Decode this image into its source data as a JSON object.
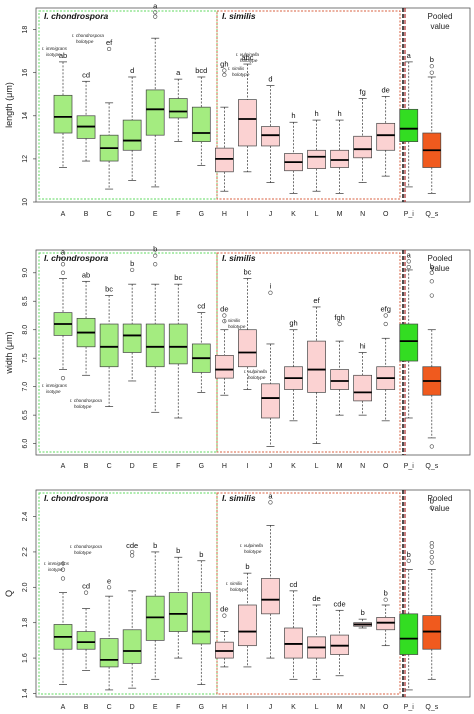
{
  "colors": {
    "chondrospora": "#a4ec80",
    "similis": "#fbd2d2",
    "pooled_i": "#33dd22",
    "pooled_q": "#f05a1e",
    "green_frame": "#5fd85f",
    "red_frame": "#d86040",
    "divider": "#990000"
  },
  "chart_data": [
    {
      "type": "box",
      "ylabel": "length (μm)",
      "ylim": [
        10,
        19
      ],
      "yticks": [
        10,
        12,
        14,
        16,
        18
      ],
      "categories": [
        "A",
        "B",
        "C",
        "D",
        "E",
        "F",
        "G",
        "H",
        "I",
        "J",
        "K",
        "L",
        "M",
        "N",
        "O",
        "P_i",
        "Q_s"
      ],
      "group_labels": {
        "chondrospora": "I. chondrospora",
        "similis": "I. similis"
      },
      "pooled_label": [
        "Pooled",
        "value"
      ],
      "notes": {
        "immigrans": [
          "I. immigrans",
          "isotype"
        ],
        "chondrospora": [
          "I. chondrospora",
          "holotype"
        ],
        "vulpinella": [
          "I. vulpinella",
          "holotype"
        ],
        "similis": [
          "I. similis",
          "holotype"
        ]
      },
      "boxes": [
        {
          "cat": "A",
          "min": 11.6,
          "q1": 13.2,
          "med": 13.95,
          "q3": 14.95,
          "max": 16.5,
          "out": [],
          "letter": "ab",
          "group": "c"
        },
        {
          "cat": "B",
          "min": 11.9,
          "q1": 12.95,
          "q3": 14.0,
          "med": 13.5,
          "max": 15.6,
          "out": [],
          "letter": "cd",
          "group": "c"
        },
        {
          "cat": "C",
          "min": 10.6,
          "q1": 11.9,
          "med": 12.5,
          "q3": 13.1,
          "max": 14.6,
          "out": [
            17.1
          ],
          "letter": "ef",
          "group": "c"
        },
        {
          "cat": "D",
          "min": 11.0,
          "q1": 12.4,
          "med": 12.85,
          "q3": 13.8,
          "max": 15.8,
          "out": [],
          "letter": "d",
          "group": "c"
        },
        {
          "cat": "E",
          "min": 10.7,
          "q1": 13.1,
          "med": 14.3,
          "q3": 15.2,
          "max": 17.6,
          "out": [
            18.6,
            18.8
          ],
          "letter": "a",
          "group": "c"
        },
        {
          "cat": "F",
          "min": 12.8,
          "q1": 13.9,
          "med": 14.2,
          "q3": 14.8,
          "max": 15.7,
          "out": [],
          "letter": "a",
          "group": "c"
        },
        {
          "cat": "G",
          "min": 11.7,
          "q1": 12.8,
          "med": 13.2,
          "q3": 14.4,
          "max": 15.8,
          "out": [],
          "letter": "bcd",
          "group": "c"
        },
        {
          "cat": "H",
          "min": 10.5,
          "q1": 11.4,
          "med": 12.0,
          "q3": 12.5,
          "max": 14.4,
          "out": [
            16.1,
            15.9
          ],
          "letter": "gh",
          "group": "s"
        },
        {
          "cat": "I",
          "min": 11.4,
          "q1": 12.6,
          "med": 13.85,
          "q3": 14.75,
          "max": 16.4,
          "out": [],
          "letter": "abc",
          "group": "s"
        },
        {
          "cat": "J",
          "min": 10.9,
          "q1": 12.6,
          "med": 13.1,
          "q3": 13.5,
          "max": 15.4,
          "out": [],
          "letter": "d",
          "group": "s"
        },
        {
          "cat": "K",
          "min": 10.4,
          "q1": 11.45,
          "med": 11.85,
          "q3": 12.25,
          "max": 13.7,
          "out": [],
          "letter": "h",
          "group": "s"
        },
        {
          "cat": "L",
          "min": 10.5,
          "q1": 11.55,
          "med": 12.1,
          "q3": 12.4,
          "max": 13.8,
          "out": [],
          "letter": "h",
          "group": "s"
        },
        {
          "cat": "M",
          "min": 10.4,
          "q1": 11.6,
          "med": 11.95,
          "q3": 12.4,
          "max": 13.8,
          "out": [],
          "letter": "h",
          "group": "s"
        },
        {
          "cat": "N",
          "min": 10.9,
          "q1": 12.05,
          "med": 12.45,
          "q3": 13.05,
          "max": 14.8,
          "out": [],
          "letter": "fg",
          "group": "s"
        },
        {
          "cat": "O",
          "min": 11.2,
          "q1": 12.4,
          "med": 13.1,
          "q3": 13.65,
          "max": 14.9,
          "out": [],
          "letter": "de",
          "group": "s"
        },
        {
          "cat": "P_i",
          "min": 10.7,
          "q1": 12.8,
          "med": 13.4,
          "q3": 14.3,
          "max": 16.5,
          "out": [],
          "letter": "a",
          "group": "pi"
        },
        {
          "cat": "Q_s",
          "min": 10.4,
          "q1": 11.6,
          "med": 12.4,
          "q3": 13.2,
          "max": 15.8,
          "out": [
            16.0,
            16.3
          ],
          "letter": "b",
          "group": "pq"
        }
      ]
    },
    {
      "type": "box",
      "ylabel": "width (μm)",
      "ylim": [
        5.8,
        9.4
      ],
      "yticks": [
        6.0,
        6.5,
        7.0,
        7.5,
        8.0,
        8.5,
        9.0
      ],
      "categories": [
        "A",
        "B",
        "C",
        "D",
        "E",
        "F",
        "G",
        "H",
        "I",
        "J",
        "K",
        "L",
        "M",
        "N",
        "O",
        "P_i",
        "Q_s"
      ],
      "group_labels": {
        "chondrospora": "I. chondrospora",
        "similis": "I. similis"
      },
      "pooled_label": [
        "Pooled",
        "value"
      ],
      "notes": {
        "immigrans": [
          "I. immigrans",
          "isotype"
        ],
        "chondrospora": [
          "I. chondrospora",
          "holotype"
        ],
        "vulpinella": [
          "I. vulpinella",
          "holotype"
        ],
        "similis": [
          "I. similis",
          "holotype"
        ]
      },
      "boxes": [
        {
          "cat": "A",
          "min": 7.3,
          "q1": 7.9,
          "med": 8.1,
          "q3": 8.3,
          "max": 8.9,
          "out": [
            9.0,
            9.15,
            9.25,
            7.15
          ],
          "letter": "a",
          "group": "c"
        },
        {
          "cat": "B",
          "min": 7.2,
          "q1": 7.7,
          "med": 7.95,
          "q3": 8.2,
          "max": 8.85,
          "out": [],
          "letter": "ab",
          "group": "c"
        },
        {
          "cat": "C",
          "min": 6.65,
          "q1": 7.35,
          "med": 7.7,
          "q3": 8.1,
          "max": 8.6,
          "out": [],
          "letter": "bc",
          "group": "c"
        },
        {
          "cat": "D",
          "min": 7.1,
          "q1": 7.6,
          "med": 7.9,
          "q3": 8.1,
          "max": 8.8,
          "out": [
            9.05
          ],
          "letter": "b",
          "group": "c"
        },
        {
          "cat": "E",
          "min": 6.55,
          "q1": 7.35,
          "med": 7.7,
          "q3": 8.1,
          "max": 8.8,
          "out": [
            9.15,
            9.3
          ],
          "letter": "b",
          "group": "c"
        },
        {
          "cat": "F",
          "min": 6.45,
          "q1": 7.4,
          "med": 7.7,
          "q3": 8.1,
          "max": 8.8,
          "out": [],
          "letter": "bc",
          "group": "c"
        },
        {
          "cat": "G",
          "min": 6.9,
          "q1": 7.25,
          "med": 7.5,
          "q3": 7.75,
          "max": 8.3,
          "out": [],
          "letter": "cd",
          "group": "c"
        },
        {
          "cat": "H",
          "min": 6.85,
          "q1": 7.15,
          "med": 7.3,
          "q3": 7.55,
          "max": 8.0,
          "out": [
            8.15,
            8.25
          ],
          "letter": "de",
          "group": "s"
        },
        {
          "cat": "I",
          "min": 6.95,
          "q1": 7.35,
          "med": 7.6,
          "q3": 8.0,
          "max": 8.9,
          "out": [],
          "letter": "bc",
          "group": "s"
        },
        {
          "cat": "J",
          "min": 5.95,
          "q1": 6.45,
          "med": 6.8,
          "q3": 7.05,
          "max": 7.75,
          "out": [
            8.65
          ],
          "letter": "i",
          "group": "s"
        },
        {
          "cat": "K",
          "min": 6.4,
          "q1": 6.95,
          "med": 7.15,
          "q3": 7.35,
          "max": 8.0,
          "out": [],
          "letter": "gh",
          "group": "s"
        },
        {
          "cat": "L",
          "min": 6.0,
          "q1": 6.9,
          "med": 7.3,
          "q3": 7.8,
          "max": 8.4,
          "out": [],
          "letter": "ef",
          "group": "s"
        },
        {
          "cat": "M",
          "min": 6.5,
          "q1": 6.95,
          "med": 7.1,
          "q3": 7.3,
          "max": 7.8,
          "out": [
            8.1
          ],
          "letter": "fgh",
          "group": "s"
        },
        {
          "cat": "N",
          "min": 6.5,
          "q1": 6.75,
          "med": 6.9,
          "q3": 7.2,
          "max": 7.6,
          "out": [],
          "letter": "hi",
          "group": "s"
        },
        {
          "cat": "O",
          "min": 6.4,
          "q1": 6.95,
          "med": 7.15,
          "q3": 7.35,
          "max": 7.85,
          "out": [
            8.1,
            8.25
          ],
          "letter": "efg",
          "group": "s"
        },
        {
          "cat": "P_i",
          "min": 6.45,
          "q1": 7.45,
          "med": 7.8,
          "q3": 8.1,
          "max": 9.05,
          "out": [
            9.2,
            9.1
          ],
          "letter": "a",
          "group": "pi"
        },
        {
          "cat": "Q_s",
          "min": 6.1,
          "q1": 6.85,
          "med": 7.1,
          "q3": 7.35,
          "max": 8.0,
          "out": [
            8.6,
            8.85,
            9.0,
            5.95
          ],
          "letter": "b",
          "group": "pq"
        }
      ]
    },
    {
      "type": "box",
      "ylabel": "Q",
      "ylim": [
        1.38,
        2.55
      ],
      "yticks": [
        1.4,
        1.6,
        1.8,
        2.0,
        2.2,
        2.4
      ],
      "categories": [
        "A",
        "B",
        "C",
        "D",
        "E",
        "F",
        "G",
        "H",
        "I",
        "J",
        "K",
        "L",
        "M",
        "N",
        "O",
        "P_i",
        "Q_s"
      ],
      "group_labels": {
        "chondrospora": "I. chondrospora",
        "similis": "I. similis"
      },
      "pooled_label": [
        "Pooled",
        "value"
      ],
      "notes": {
        "immigrans": [
          "I. immigrans",
          "isotype"
        ],
        "chondrospora": [
          "I. chondrospora",
          "holotype"
        ],
        "vulpinella": [
          "I. vulpinella",
          "holotype"
        ],
        "similis": [
          "I. similis",
          "holotype"
        ]
      },
      "boxes": [
        {
          "cat": "A",
          "min": 1.45,
          "q1": 1.65,
          "med": 1.72,
          "q3": 1.79,
          "max": 1.97,
          "out": [
            2.05,
            2.1
          ],
          "letter": "c",
          "group": "c"
        },
        {
          "cat": "B",
          "min": 1.53,
          "q1": 1.65,
          "med": 1.69,
          "q3": 1.75,
          "max": 1.88,
          "out": [
            1.97
          ],
          "letter": "cd",
          "group": "c"
        },
        {
          "cat": "C",
          "min": 1.42,
          "q1": 1.55,
          "med": 1.59,
          "q3": 1.71,
          "max": 1.95,
          "out": [
            2.0
          ],
          "letter": "e",
          "group": "c"
        },
        {
          "cat": "D",
          "min": 1.43,
          "q1": 1.57,
          "med": 1.64,
          "q3": 1.76,
          "max": 1.98,
          "out": [
            2.18,
            2.2
          ],
          "letter": "cde",
          "group": "c"
        },
        {
          "cat": "E",
          "min": 1.48,
          "q1": 1.7,
          "med": 1.83,
          "q3": 1.95,
          "max": 2.2,
          "out": [],
          "letter": "b",
          "group": "c"
        },
        {
          "cat": "F",
          "min": 1.6,
          "q1": 1.75,
          "med": 1.85,
          "q3": 1.97,
          "max": 2.17,
          "out": [],
          "letter": "b",
          "group": "c"
        },
        {
          "cat": "G",
          "min": 1.45,
          "q1": 1.68,
          "med": 1.75,
          "q3": 1.97,
          "max": 2.15,
          "out": [],
          "letter": "b",
          "group": "c"
        },
        {
          "cat": "H",
          "min": 1.55,
          "q1": 1.6,
          "med": 1.64,
          "q3": 1.69,
          "max": 1.75,
          "out": [
            1.84
          ],
          "letter": "de",
          "group": "s"
        },
        {
          "cat": "I",
          "min": 1.55,
          "q1": 1.67,
          "med": 1.75,
          "q3": 1.9,
          "max": 2.08,
          "out": [],
          "letter": "b",
          "group": "s"
        },
        {
          "cat": "J",
          "min": 1.6,
          "q1": 1.85,
          "med": 1.93,
          "q3": 2.05,
          "max": 2.35,
          "out": [
            2.48
          ],
          "letter": "a",
          "group": "s"
        },
        {
          "cat": "K",
          "min": 1.48,
          "q1": 1.6,
          "med": 1.68,
          "q3": 1.77,
          "max": 1.98,
          "out": [],
          "letter": "cd",
          "group": "s"
        },
        {
          "cat": "L",
          "min": 1.48,
          "q1": 1.6,
          "med": 1.66,
          "q3": 1.72,
          "max": 1.9,
          "out": [],
          "letter": "de",
          "group": "s"
        },
        {
          "cat": "M",
          "min": 1.5,
          "q1": 1.62,
          "med": 1.67,
          "q3": 1.73,
          "max": 1.87,
          "out": [],
          "letter": "cde",
          "group": "s"
        },
        {
          "cat": "N",
          "min": 1.77,
          "q1": 1.78,
          "med": 1.79,
          "q3": 1.8,
          "max": 1.82,
          "out": [],
          "letter": "b",
          "group": "s"
        },
        {
          "cat": "O",
          "min": 1.67,
          "q1": 1.76,
          "med": 1.8,
          "q3": 1.83,
          "max": 1.9,
          "out": [
            1.93
          ],
          "letter": "b",
          "group": "s"
        },
        {
          "cat": "P_i",
          "min": 1.42,
          "q1": 1.62,
          "med": 1.71,
          "q3": 1.85,
          "max": 2.1,
          "out": [
            2.15
          ],
          "letter": "b",
          "group": "pi"
        },
        {
          "cat": "Q_s",
          "min": 1.48,
          "q1": 1.65,
          "med": 1.75,
          "q3": 1.84,
          "max": 2.1,
          "out": [
            2.14,
            2.17,
            2.2,
            2.23,
            2.25,
            2.45
          ],
          "letter": "b",
          "group": "pq"
        }
      ]
    }
  ]
}
